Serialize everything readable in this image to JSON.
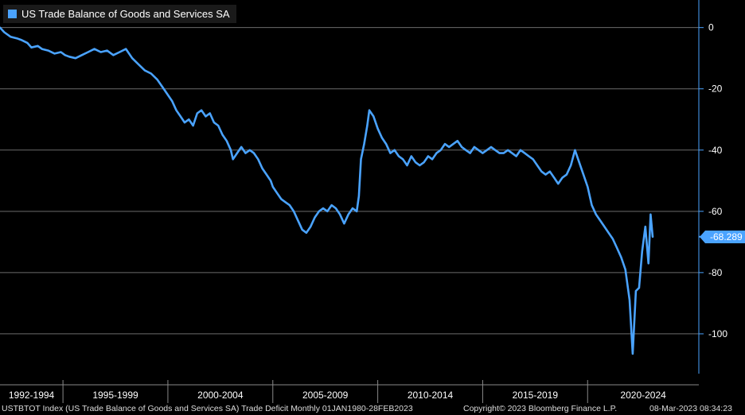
{
  "legend": {
    "label": "US Trade Balance of Goods and Services SA"
  },
  "last_value_label": "-68.289",
  "footer": {
    "description": "USTBTOT Index (US Trade Balance of Goods and Services SA) Trade Deficit  Monthly 01JAN1980-28FEB2023",
    "copyright": "Copyright© 2023 Bloomberg Finance L.P.",
    "timestamp": "08-Mar-2023 08:34:23"
  },
  "colors": {
    "background": "#000000",
    "line": "#4aa3ff",
    "grid": "#6b6b6b",
    "axis": "#4aa3ff",
    "text": "#ffffff"
  },
  "chart_data": {
    "type": "line",
    "title": "",
    "xlabel": "",
    "ylabel": "",
    "grid": true,
    "legend_position": "top-left",
    "y_axis_side": "right",
    "ylim": [
      -113,
      9
    ],
    "y_ticks": [
      0,
      -20,
      -40,
      -60,
      -80,
      -100
    ],
    "y_tick_labels": [
      "0",
      "-20",
      "-40",
      "-60",
      "-80",
      "-100"
    ],
    "x_periods": [
      "1992-1994",
      "1995-1999",
      "2000-2004",
      "2005-2009",
      "2010-2014",
      "2015-2019",
      "2020-2024"
    ],
    "x_period_start_years": [
      1992,
      1995,
      2000,
      2005,
      2010,
      2015,
      2020
    ],
    "xlim": [
      1992.0,
      2025.3
    ],
    "last_value": -68.289,
    "series": [
      {
        "values": [
          [
            1992.0,
            0
          ],
          [
            1992.2,
            -1.5
          ],
          [
            1992.5,
            -3
          ],
          [
            1992.8,
            -3.5
          ],
          [
            1993.0,
            -4
          ],
          [
            1993.3,
            -5
          ],
          [
            1993.5,
            -6.5
          ],
          [
            1993.8,
            -6
          ],
          [
            1994.0,
            -7
          ],
          [
            1994.3,
            -7.5
          ],
          [
            1994.6,
            -8.5
          ],
          [
            1994.9,
            -8
          ],
          [
            1995.1,
            -9
          ],
          [
            1995.3,
            -9.5
          ],
          [
            1995.6,
            -10
          ],
          [
            1995.9,
            -9
          ],
          [
            1996.2,
            -8
          ],
          [
            1996.5,
            -7
          ],
          [
            1996.8,
            -8
          ],
          [
            1997.1,
            -7.5
          ],
          [
            1997.4,
            -9
          ],
          [
            1997.7,
            -8
          ],
          [
            1998.0,
            -7
          ],
          [
            1998.3,
            -10
          ],
          [
            1998.6,
            -12
          ],
          [
            1998.9,
            -14
          ],
          [
            1999.2,
            -15
          ],
          [
            1999.5,
            -17
          ],
          [
            1999.8,
            -20
          ],
          [
            2000.0,
            -22
          ],
          [
            2000.2,
            -24
          ],
          [
            2000.4,
            -27
          ],
          [
            2000.6,
            -29
          ],
          [
            2000.8,
            -31
          ],
          [
            2001.0,
            -30
          ],
          [
            2001.2,
            -32
          ],
          [
            2001.4,
            -28
          ],
          [
            2001.6,
            -27
          ],
          [
            2001.8,
            -29
          ],
          [
            2002.0,
            -28
          ],
          [
            2002.2,
            -31
          ],
          [
            2002.4,
            -32
          ],
          [
            2002.6,
            -35
          ],
          [
            2002.8,
            -37
          ],
          [
            2003.0,
            -40
          ],
          [
            2003.1,
            -43
          ],
          [
            2003.3,
            -41
          ],
          [
            2003.5,
            -39
          ],
          [
            2003.7,
            -41
          ],
          [
            2003.9,
            -40
          ],
          [
            2004.1,
            -41
          ],
          [
            2004.3,
            -43
          ],
          [
            2004.5,
            -46
          ],
          [
            2004.7,
            -48
          ],
          [
            2004.9,
            -50
          ],
          [
            2005.0,
            -52
          ],
          [
            2005.2,
            -54
          ],
          [
            2005.4,
            -56
          ],
          [
            2005.6,
            -57
          ],
          [
            2005.8,
            -58
          ],
          [
            2006.0,
            -60
          ],
          [
            2006.2,
            -63
          ],
          [
            2006.4,
            -66
          ],
          [
            2006.6,
            -67
          ],
          [
            2006.8,
            -65
          ],
          [
            2007.0,
            -62
          ],
          [
            2007.2,
            -60
          ],
          [
            2007.4,
            -59
          ],
          [
            2007.6,
            -60
          ],
          [
            2007.8,
            -58
          ],
          [
            2008.0,
            -59
          ],
          [
            2008.2,
            -61
          ],
          [
            2008.4,
            -64
          ],
          [
            2008.6,
            -61
          ],
          [
            2008.8,
            -59
          ],
          [
            2009.0,
            -60
          ],
          [
            2009.1,
            -55
          ],
          [
            2009.2,
            -43
          ],
          [
            2009.35,
            -38
          ],
          [
            2009.5,
            -32
          ],
          [
            2009.6,
            -27
          ],
          [
            2009.8,
            -29
          ],
          [
            2010.0,
            -33
          ],
          [
            2010.2,
            -36
          ],
          [
            2010.4,
            -38
          ],
          [
            2010.6,
            -41
          ],
          [
            2010.8,
            -40
          ],
          [
            2011.0,
            -42
          ],
          [
            2011.2,
            -43
          ],
          [
            2011.4,
            -45
          ],
          [
            2011.6,
            -42
          ],
          [
            2011.8,
            -44
          ],
          [
            2012.0,
            -45
          ],
          [
            2012.2,
            -44
          ],
          [
            2012.4,
            -42
          ],
          [
            2012.6,
            -43
          ],
          [
            2012.8,
            -41
          ],
          [
            2013.0,
            -40
          ],
          [
            2013.2,
            -38
          ],
          [
            2013.4,
            -39
          ],
          [
            2013.6,
            -38
          ],
          [
            2013.8,
            -37
          ],
          [
            2014.0,
            -39
          ],
          [
            2014.2,
            -40
          ],
          [
            2014.4,
            -41
          ],
          [
            2014.6,
            -39
          ],
          [
            2014.8,
            -40
          ],
          [
            2015.0,
            -41
          ],
          [
            2015.2,
            -40
          ],
          [
            2015.4,
            -39
          ],
          [
            2015.6,
            -40
          ],
          [
            2015.8,
            -41
          ],
          [
            2016.0,
            -41
          ],
          [
            2016.2,
            -40
          ],
          [
            2016.4,
            -41
          ],
          [
            2016.6,
            -42
          ],
          [
            2016.8,
            -40
          ],
          [
            2017.0,
            -41
          ],
          [
            2017.2,
            -42
          ],
          [
            2017.4,
            -43
          ],
          [
            2017.6,
            -45
          ],
          [
            2017.8,
            -47
          ],
          [
            2018.0,
            -48
          ],
          [
            2018.2,
            -47
          ],
          [
            2018.4,
            -49
          ],
          [
            2018.6,
            -51
          ],
          [
            2018.8,
            -49
          ],
          [
            2019.0,
            -48
          ],
          [
            2019.2,
            -45
          ],
          [
            2019.4,
            -40
          ],
          [
            2019.6,
            -44
          ],
          [
            2019.8,
            -48
          ],
          [
            2020.0,
            -52
          ],
          [
            2020.2,
            -58
          ],
          [
            2020.4,
            -61
          ],
          [
            2020.6,
            -63
          ],
          [
            2020.8,
            -65
          ],
          [
            2021.0,
            -67
          ],
          [
            2021.2,
            -69
          ],
          [
            2021.4,
            -72
          ],
          [
            2021.6,
            -75
          ],
          [
            2021.8,
            -79
          ],
          [
            2022.0,
            -89
          ],
          [
            2022.15,
            -106.5
          ],
          [
            2022.3,
            -86
          ],
          [
            2022.45,
            -85
          ],
          [
            2022.6,
            -73
          ],
          [
            2022.75,
            -65
          ],
          [
            2022.9,
            -77
          ],
          [
            2023.0,
            -61
          ],
          [
            2023.1,
            -68.289
          ]
        ]
      }
    ]
  }
}
